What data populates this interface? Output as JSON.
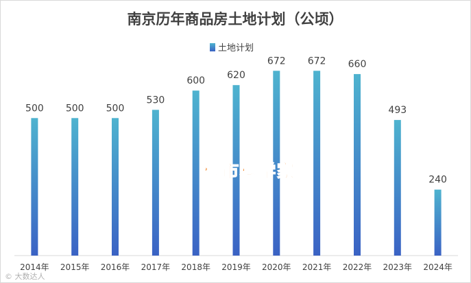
{
  "chart_data": {
    "type": "bar",
    "title": "南京历年商品房土地计划（公顷）",
    "categories": [
      "2014年",
      "2015年",
      "2016年",
      "2017年",
      "2018年",
      "2019年",
      "2020年",
      "2021年",
      "2022年",
      "2023年",
      "2024年"
    ],
    "series": [
      {
        "name": "土地计划",
        "values": [
          500,
          500,
          500,
          530,
          600,
          620,
          672,
          672,
          660,
          493,
          240
        ]
      }
    ],
    "ylim": [
      0,
      750
    ],
    "legend_position": "top",
    "grid": false,
    "bar_gradient": {
      "top": "#4eb3cf",
      "bottom": "#3a62c4"
    }
  },
  "watermark": "楼市科学家",
  "corner_mark": "© 大数达人"
}
